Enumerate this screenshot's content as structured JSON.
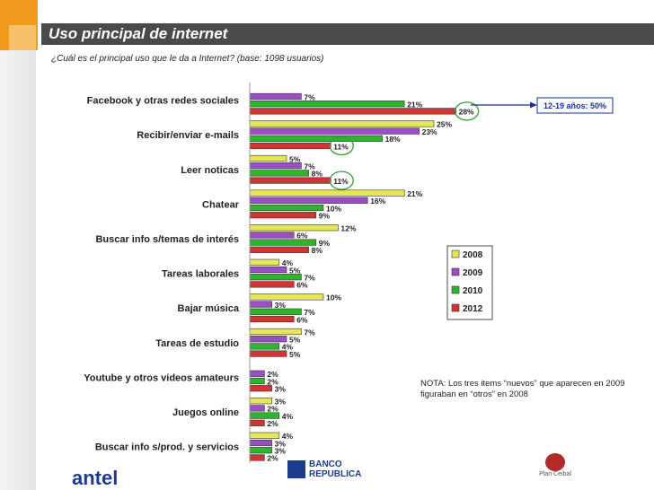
{
  "header": {
    "title": "Uso principal de internet",
    "subtitle": "¿Cuál es el principal uso que le da a Internet? (base: 1098 usuarios)"
  },
  "callout": {
    "text": "12-19 años: 50%"
  },
  "note": "NOTA: Los tres items “nuevos” que aparecen en 2009 figuraban en “otros” en 2008",
  "logos": {
    "antel": "antel",
    "banco": [
      "BANCO",
      "REPUBLICA"
    ],
    "ceibal": "Plan Ceibal"
  },
  "colors": {
    "2008": "#e6e65a",
    "2009": "#9a4fc4",
    "2010": "#2db52d",
    "2012": "#d03535",
    "callout_border": "#1a2f9e",
    "circle": "#3a9a3a"
  },
  "chart_data": {
    "type": "bar",
    "orientation": "horizontal",
    "categories": [
      "Facebook y otras redes sociales",
      "Recibir/enviar e-mails",
      "Leer noticas",
      "Chatear",
      "Buscar info s/temas de interés",
      "Tareas laborales",
      "Bajar música",
      "Tareas de estudio",
      "Youtube y otros videos amateurs",
      "Juegos online",
      "Buscar info s/prod. y servicios"
    ],
    "series": [
      {
        "name": "2008",
        "values": [
          null,
          25,
          5,
          21,
          12,
          4,
          10,
          7,
          null,
          3,
          4
        ]
      },
      {
        "name": "2009",
        "values": [
          7,
          23,
          7,
          16,
          6,
          5,
          3,
          5,
          2,
          2,
          3
        ]
      },
      {
        "name": "2010",
        "values": [
          21,
          18,
          8,
          10,
          9,
          7,
          7,
          4,
          2,
          4,
          3
        ]
      },
      {
        "name": "2012",
        "values": [
          28,
          11,
          11,
          9,
          8,
          6,
          6,
          5,
          3,
          2,
          2
        ]
      }
    ],
    "value_suffix": "%",
    "legend_position": "right",
    "xlim": [
      0,
      35
    ],
    "highlighted": [
      {
        "category": "Facebook y otras redes sociales",
        "series": "2012"
      },
      {
        "category": "Recibir/enviar e-mails",
        "series": "2012"
      },
      {
        "category": "Leer noticas",
        "series": "2012"
      }
    ]
  }
}
